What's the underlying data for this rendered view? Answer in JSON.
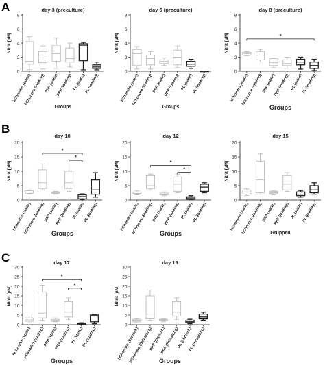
{
  "panel_labels": [
    "A",
    "B",
    "C"
  ],
  "chart_data": [
    {
      "type": "box",
      "panel": "A",
      "title": "day 3 (preculture)",
      "xlabel": "Groups",
      "ylabel": "Nitrit [µM]",
      "ylim": [
        0,
        8
      ],
      "yticks": [
        0,
        2,
        4,
        6,
        8
      ],
      "grid": false,
      "categories": [
        "hChondro (static)",
        "hChondro (loading)",
        "PRP (static)",
        "PRP (loading)",
        "PL (static)",
        "PL (loading)"
      ],
      "boxes": [
        {
          "min": 0.2,
          "q1": 1.0,
          "median": 1.4,
          "q3": 4.2,
          "max": 4.9
        },
        {
          "min": 0.3,
          "q1": 1.2,
          "median": 1.9,
          "q3": 2.8,
          "max": 3.6
        },
        {
          "min": 0.4,
          "q1": 1.4,
          "median": 2.5,
          "q3": 3.7,
          "max": 4.7
        },
        {
          "min": 0.6,
          "q1": 1.3,
          "median": 1.8,
          "q3": 3.3,
          "max": 4.0
        },
        {
          "min": 0.2,
          "q1": 1.5,
          "median": 3.7,
          "q3": 3.9,
          "max": 4.1
        },
        {
          "min": 0.2,
          "q1": 0.4,
          "median": 0.6,
          "q3": 0.9,
          "max": 1.3
        }
      ],
      "significance": []
    },
    {
      "type": "box",
      "panel": "A",
      "title": "day 5 (preculture)",
      "xlabel": "Groups",
      "ylabel": "Nitrit [µM]",
      "ylim": [
        0,
        8
      ],
      "yticks": [
        0,
        2,
        4,
        6,
        8
      ],
      "grid": false,
      "categories": [
        "hChondro (static)",
        "hChondro (loading)",
        "PRP (static)",
        "PRP (loading)",
        "PL (static)",
        "PL (loading)"
      ],
      "boxes": [
        {
          "min": 0.3,
          "q1": 0.8,
          "median": 2.5,
          "q3": 3.1,
          "max": 3.5
        },
        {
          "min": 0.3,
          "q1": 0.9,
          "median": 1.8,
          "q3": 2.3,
          "max": 2.8
        },
        {
          "min": 0.8,
          "q1": 1.1,
          "median": 1.4,
          "q3": 1.6,
          "max": 1.9
        },
        {
          "min": 0.5,
          "q1": 0.9,
          "median": 2.0,
          "q3": 3.0,
          "max": 3.6
        },
        {
          "min": 0.4,
          "q1": 0.7,
          "median": 1.0,
          "q3": 1.4,
          "max": 1.7
        },
        {
          "min": 0.0,
          "q1": 0.0,
          "median": 0.0,
          "q3": 0.0,
          "max": 0.0
        }
      ],
      "significance": []
    },
    {
      "type": "box",
      "panel": "A",
      "title": "day 8 (preculture)",
      "xlabel": "Groups",
      "ylabel": "Nitrit [µM]",
      "ylim": [
        0,
        8
      ],
      "yticks": [
        0,
        2,
        4,
        6,
        8
      ],
      "grid": false,
      "categories": [
        "hChondro (static)",
        "hChondro (loading)",
        "PRP (static)",
        "PRP (loading)",
        "PL (static)",
        "PL (loading)"
      ],
      "boxes": [
        {
          "min": 2.2,
          "q1": 2.3,
          "median": 2.5,
          "q3": 2.7,
          "max": 2.8
        },
        {
          "min": 1.3,
          "q1": 1.6,
          "median": 2.3,
          "q3": 2.8,
          "max": 3.1
        },
        {
          "min": 0.5,
          "q1": 0.8,
          "median": 1.2,
          "q3": 1.8,
          "max": 1.9
        },
        {
          "min": 0.4,
          "q1": 0.8,
          "median": 1.1,
          "q3": 1.6,
          "max": 2.0
        },
        {
          "min": 0.3,
          "q1": 0.9,
          "median": 1.3,
          "q3": 1.7,
          "max": 2.0
        },
        {
          "min": 0.1,
          "q1": 0.4,
          "median": 0.8,
          "q3": 1.3,
          "max": 1.7
        }
      ],
      "significance": [
        {
          "from": 0,
          "to": 5,
          "y": 4.6,
          "label": "*"
        }
      ]
    },
    {
      "type": "box",
      "panel": "B",
      "title": "day 10",
      "xlabel": "Groups",
      "ylabel": "Nitrit [µM]",
      "ylim": [
        0,
        20
      ],
      "yticks": [
        0,
        5,
        10,
        15,
        20
      ],
      "grid": false,
      "categories": [
        "hChondro (static)",
        "hChondro (loading)",
        "PRP (static)",
        "PRP (loading)",
        "PL (static)",
        "PL (loading)"
      ],
      "boxes": [
        {
          "min": 2.1,
          "q1": 2.3,
          "median": 2.7,
          "q3": 3.2,
          "max": 3.5
        },
        {
          "min": 3.5,
          "q1": 4.0,
          "median": 6.0,
          "q3": 10.5,
          "max": 12.5
        },
        {
          "min": 2.0,
          "q1": 2.3,
          "median": 2.5,
          "q3": 2.8,
          "max": 3.0
        },
        {
          "min": 3.0,
          "q1": 4.0,
          "median": 6.0,
          "q3": 10.0,
          "max": 12.5
        },
        {
          "min": 0.1,
          "q1": 0.4,
          "median": 1.2,
          "q3": 1.8,
          "max": 2.1
        },
        {
          "min": 1.0,
          "q1": 2.0,
          "median": 3.5,
          "q3": 7.0,
          "max": 9.5
        }
      ],
      "significance": [
        {
          "from": 1,
          "to": 4,
          "y": 16.2,
          "label": "*"
        },
        {
          "from": 3,
          "to": 4,
          "y": 13.8,
          "label": "*"
        }
      ]
    },
    {
      "type": "box",
      "panel": "B",
      "title": "day 12",
      "xlabel": "Groups",
      "ylabel": "Nitrit [µM]",
      "ylim": [
        0,
        20
      ],
      "yticks": [
        0,
        5,
        10,
        15,
        20
      ],
      "grid": false,
      "categories": [
        "hChondro (static)",
        "hChondro (loading)",
        "PRP (static)",
        "PRP (loading)",
        "PL (static)",
        "PL (loading)"
      ],
      "boxes": [
        {
          "min": 1.8,
          "q1": 2.1,
          "median": 2.3,
          "q3": 2.8,
          "max": 3.3
        },
        {
          "min": 3.5,
          "q1": 4.0,
          "median": 5.0,
          "q3": 8.5,
          "max": 9.0
        },
        {
          "min": 1.5,
          "q1": 1.8,
          "median": 2.0,
          "q3": 2.4,
          "max": 2.8
        },
        {
          "min": 2.5,
          "q1": 3.0,
          "median": 5.5,
          "q3": 8.0,
          "max": 9.0
        },
        {
          "min": 0.1,
          "q1": 0.3,
          "median": 0.7,
          "q3": 1.1,
          "max": 1.5
        },
        {
          "min": 2.5,
          "q1": 3.0,
          "median": 4.5,
          "q3": 5.5,
          "max": 6.0
        }
      ],
      "significance": [
        {
          "from": 1,
          "to": 4,
          "y": 12.0,
          "label": "*"
        },
        {
          "from": 3,
          "to": 4,
          "y": 9.6,
          "label": "*"
        }
      ]
    },
    {
      "type": "box",
      "panel": "B",
      "title": "day 15",
      "xlabel": "Gruppen",
      "ylabel": "Nitrit [µM]",
      "ylim": [
        0,
        20
      ],
      "yticks": [
        0,
        5,
        10,
        15,
        20
      ],
      "grid": false,
      "categories": [
        "hChondro (static)",
        "hChondro (loading)",
        "PRP (static)",
        "PRP (loading)",
        "PL (static)",
        "PL (loading)"
      ],
      "boxes": [
        {
          "min": 1.5,
          "q1": 2.0,
          "median": 2.8,
          "q3": 3.5,
          "max": 4.0
        },
        {
          "min": 2.0,
          "q1": 2.5,
          "median": 7.0,
          "q3": 13.5,
          "max": 16.0
        },
        {
          "min": 1.8,
          "q1": 2.2,
          "median": 2.5,
          "q3": 3.0,
          "max": 3.3
        },
        {
          "min": 3.0,
          "q1": 3.5,
          "median": 5.5,
          "q3": 8.5,
          "max": 9.5
        },
        {
          "min": 1.0,
          "q1": 1.5,
          "median": 2.0,
          "q3": 2.8,
          "max": 3.3
        },
        {
          "min": 2.0,
          "q1": 2.5,
          "median": 3.5,
          "q3": 5.0,
          "max": 6.0
        }
      ],
      "significance": []
    },
    {
      "type": "box",
      "panel": "C",
      "title": "day 17",
      "xlabel": "Groups",
      "ylabel": "Nitrit [µM]",
      "ylim": [
        0,
        30
      ],
      "yticks": [
        0,
        5,
        10,
        15,
        20,
        25,
        30
      ],
      "grid": false,
      "categories": [
        "hChondro (static)",
        "hChondro (loading)",
        "PRP (static)",
        "PRP (loading)",
        "PL (static)",
        "PL (loading)"
      ],
      "boxes": [
        {
          "min": 1.0,
          "q1": 1.8,
          "median": 2.5,
          "q3": 3.5,
          "max": 4.5
        },
        {
          "min": 2.0,
          "q1": 3.5,
          "median": 6.0,
          "q3": 17.0,
          "max": 20.5
        },
        {
          "min": 1.5,
          "q1": 1.8,
          "median": 2.2,
          "q3": 2.8,
          "max": 3.5
        },
        {
          "min": 2.5,
          "q1": 4.0,
          "median": 6.5,
          "q3": 12.0,
          "max": 14.0
        },
        {
          "min": 0.2,
          "q1": 0.3,
          "median": 0.5,
          "q3": 0.8,
          "max": 1.0
        },
        {
          "min": 0.5,
          "q1": 1.5,
          "median": 4.5,
          "q3": 5.0,
          "max": 5.3
        }
      ],
      "significance": [
        {
          "from": 1,
          "to": 4,
          "y": 23.5,
          "label": "*"
        },
        {
          "from": 3,
          "to": 4,
          "y": 19.0,
          "label": "*"
        }
      ]
    },
    {
      "type": "box",
      "panel": "C",
      "title": "day 19",
      "xlabel": "Groups",
      "ylabel": "Nitrit [µM]",
      "ylim": [
        0,
        30
      ],
      "yticks": [
        0,
        5,
        10,
        15,
        20,
        25,
        30
      ],
      "grid": false,
      "categories": [
        "hChondro (Statisch)",
        "hChondro (Belastung)",
        "PRP (Statisch)",
        "PRP (Belastung)",
        "PL (Statisch)",
        "PL (Belastung)"
      ],
      "boxes": [
        {
          "min": 1.0,
          "q1": 1.5,
          "median": 2.0,
          "q3": 2.8,
          "max": 3.2
        },
        {
          "min": 2.0,
          "q1": 3.0,
          "median": 5.5,
          "q3": 15.0,
          "max": 18.0
        },
        {
          "min": 1.5,
          "q1": 2.0,
          "median": 2.5,
          "q3": 2.8,
          "max": 3.0
        },
        {
          "min": 2.5,
          "q1": 4.5,
          "median": 6.5,
          "q3": 12.0,
          "max": 14.0
        },
        {
          "min": 0.5,
          "q1": 1.0,
          "median": 1.5,
          "q3": 2.3,
          "max": 2.8
        },
        {
          "min": 2.0,
          "q1": 3.0,
          "median": 4.0,
          "q3": 5.5,
          "max": 6.5
        }
      ],
      "significance": []
    }
  ],
  "colors": {
    "gray": "#bbbbbb",
    "dark": "#222222",
    "axis": "#222222"
  }
}
